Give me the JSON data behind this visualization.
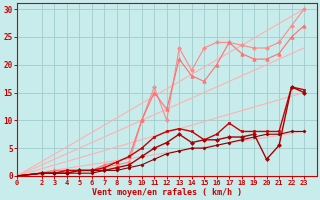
{
  "background_color": "#c8ecec",
  "grid_color": "#a0cccc",
  "xlabel": "Vent moyen/en rafales ( km/h )",
  "tick_color": "#cc0000",
  "yticks": [
    0,
    5,
    10,
    15,
    20,
    25,
    30
  ],
  "xticks": [
    0,
    2,
    3,
    4,
    5,
    6,
    7,
    8,
    9,
    10,
    11,
    12,
    13,
    14,
    15,
    16,
    17,
    18,
    19,
    20,
    21,
    22,
    23
  ],
  "xlim": [
    0,
    24
  ],
  "ylim": [
    0,
    31
  ],
  "lines": [
    {
      "x": [
        0,
        23
      ],
      "y": [
        0,
        30
      ],
      "color": "#ffb0b0",
      "marker": null,
      "linewidth": 0.8
    },
    {
      "x": [
        0,
        23
      ],
      "y": [
        0,
        23
      ],
      "color": "#ffb0b0",
      "marker": null,
      "linewidth": 0.8
    },
    {
      "x": [
        0,
        23
      ],
      "y": [
        0,
        15
      ],
      "color": "#ffb0b0",
      "marker": null,
      "linewidth": 0.8
    },
    {
      "x": [
        0,
        23
      ],
      "y": [
        0,
        8
      ],
      "color": "#ffb0b0",
      "marker": null,
      "linewidth": 0.8
    },
    {
      "x": [
        0,
        2,
        3,
        4,
        5,
        6,
        7,
        8,
        9,
        10,
        11,
        12,
        13,
        14,
        15,
        16,
        17,
        18,
        19,
        20,
        21,
        22,
        23
      ],
      "y": [
        0,
        0.5,
        0.5,
        0.5,
        1,
        1,
        1.5,
        2,
        2.5,
        10,
        16,
        10,
        23,
        19,
        23,
        24,
        24,
        23.5,
        23,
        23,
        24,
        27,
        30
      ],
      "color": "#ff8888",
      "marker": "D",
      "markersize": 2.0,
      "linewidth": 0.8
    },
    {
      "x": [
        0,
        2,
        3,
        4,
        5,
        6,
        7,
        8,
        9,
        10,
        11,
        12,
        13,
        14,
        15,
        16,
        17,
        18,
        19,
        20,
        21,
        22,
        23
      ],
      "y": [
        0,
        0.5,
        1,
        1,
        1,
        1,
        2,
        2.5,
        3.5,
        10,
        15,
        12,
        21,
        18,
        17,
        20,
        24,
        22,
        21,
        21,
        22,
        25,
        27
      ],
      "color": "#ff7070",
      "marker": "^",
      "markersize": 2.5,
      "linewidth": 0.8
    },
    {
      "x": [
        0,
        2,
        3,
        4,
        5,
        6,
        7,
        8,
        9,
        10,
        11,
        12,
        13,
        14,
        15,
        16,
        17,
        18,
        19,
        20,
        21,
        22,
        23
      ],
      "y": [
        0,
        0.5,
        0.5,
        1,
        1,
        1,
        1.5,
        2.5,
        3.5,
        5,
        7,
        8,
        8.5,
        8,
        6.5,
        7.5,
        9.5,
        8,
        8,
        8,
        8,
        16,
        15.5
      ],
      "color": "#cc0000",
      "marker": "s",
      "markersize": 2.0,
      "linewidth": 1.0
    },
    {
      "x": [
        0,
        2,
        3,
        4,
        5,
        6,
        7,
        8,
        9,
        10,
        11,
        12,
        13,
        14,
        15,
        16,
        17,
        18,
        19,
        20,
        21,
        22,
        23
      ],
      "y": [
        0,
        0.5,
        0.5,
        0.5,
        1,
        1,
        1,
        1.5,
        2,
        3.5,
        5,
        6,
        7.5,
        6,
        6.5,
        6.5,
        7,
        7,
        7.5,
        3,
        5.5,
        16,
        15
      ],
      "color": "#aa0000",
      "marker": "D",
      "markersize": 2.0,
      "linewidth": 1.0
    },
    {
      "x": [
        0,
        2,
        3,
        4,
        5,
        6,
        7,
        8,
        9,
        10,
        11,
        12,
        13,
        14,
        15,
        16,
        17,
        18,
        19,
        20,
        21,
        22,
        23
      ],
      "y": [
        0,
        0.5,
        0.5,
        0.5,
        0.5,
        0.5,
        1,
        1,
        1.5,
        2,
        3,
        4,
        4.5,
        5,
        5,
        5.5,
        6,
        6.5,
        7,
        7.5,
        7.5,
        8,
        8
      ],
      "color": "#880000",
      "marker": "D",
      "markersize": 1.5,
      "linewidth": 0.8
    }
  ]
}
